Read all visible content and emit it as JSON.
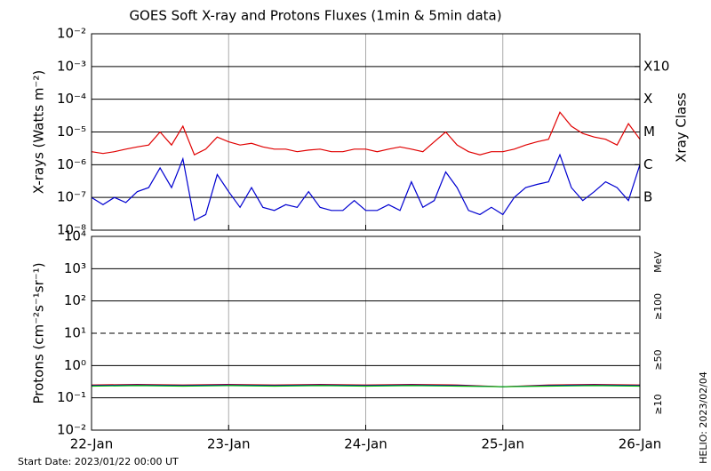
{
  "title": "GOES Soft X-ray and Protons Fluxes   (1min & 5min data)",
  "start_date": "Start Date: 2023/01/22 00:00 UT",
  "helio": "HELIO: 2023/02/04",
  "chart_data": [
    {
      "type": "line",
      "y_label": "X-rays (Watts m⁻²)",
      "y2_label": "Xray Class",
      "log_scale": true,
      "x": [
        0,
        2,
        4,
        6,
        8,
        10,
        12,
        14,
        16,
        18,
        20,
        22,
        24,
        26,
        28,
        30,
        32,
        34,
        36,
        38,
        40,
        42,
        44,
        46,
        48,
        50,
        52,
        54,
        56,
        58,
        60,
        62,
        64,
        66,
        68,
        70,
        72,
        74,
        76,
        78,
        80,
        82,
        84,
        86,
        88,
        90,
        92,
        94,
        96
      ],
      "xlim": [
        0,
        96
      ],
      "xticks": [
        0,
        24,
        48,
        72,
        96
      ],
      "ylim": [
        1e-08,
        0.01
      ],
      "yticks": [
        {
          "value": 0.01,
          "label": "10⁻²"
        },
        {
          "value": 0.001,
          "label": "10⁻³"
        },
        {
          "value": 0.0001,
          "label": "10⁻⁴"
        },
        {
          "value": 1e-05,
          "label": "10⁻⁵"
        },
        {
          "value": 1e-06,
          "label": "10⁻⁶"
        },
        {
          "value": 1e-07,
          "label": "10⁻⁷"
        },
        {
          "value": 1e-08,
          "label": "10⁻⁸"
        }
      ],
      "y2lim": [
        1e-08,
        0.01
      ],
      "y2ticks": [
        {
          "value": 0.001,
          "label": "X10"
        },
        {
          "value": 0.0001,
          "label": "X"
        },
        {
          "value": 1e-05,
          "label": "M"
        },
        {
          "value": 1e-06,
          "label": "C"
        },
        {
          "value": 1e-07,
          "label": "B"
        }
      ],
      "grid": true,
      "series": [
        {
          "color": "#e00000",
          "values": [
            2.5e-06,
            2.2e-06,
            2.5e-06,
            3e-06,
            3.5e-06,
            4e-06,
            1e-05,
            4e-06,
            1.5e-05,
            2e-06,
            3e-06,
            7e-06,
            5e-06,
            4e-06,
            4.5e-06,
            3.5e-06,
            3e-06,
            3e-06,
            2.5e-06,
            2.8e-06,
            3e-06,
            2.5e-06,
            2.5e-06,
            3e-06,
            3e-06,
            2.5e-06,
            3e-06,
            3.5e-06,
            3e-06,
            2.5e-06,
            5e-06,
            1e-05,
            4e-06,
            2.5e-06,
            2e-06,
            2.5e-06,
            2.5e-06,
            3e-06,
            4e-06,
            5e-06,
            6e-06,
            4e-05,
            1.5e-05,
            9e-06,
            7e-06,
            6e-06,
            4e-06,
            1.8e-05,
            6e-06
          ]
        },
        {
          "color": "#0000d0",
          "values": [
            1e-07,
            6e-08,
            1e-07,
            7e-08,
            1.5e-07,
            2e-07,
            8e-07,
            2e-07,
            1.5e-06,
            2e-08,
            3e-08,
            5e-07,
            1.5e-07,
            5e-08,
            2e-07,
            5e-08,
            4e-08,
            6e-08,
            5e-08,
            1.5e-07,
            5e-08,
            4e-08,
            4e-08,
            8e-08,
            4e-08,
            4e-08,
            6e-08,
            4e-08,
            3e-07,
            5e-08,
            8e-08,
            6e-07,
            2e-07,
            4e-08,
            3e-08,
            5e-08,
            3e-08,
            1e-07,
            2e-07,
            2.5e-07,
            3e-07,
            2e-06,
            2e-07,
            8e-08,
            1.5e-07,
            3e-07,
            2e-07,
            8e-08,
            1e-06
          ]
        }
      ]
    },
    {
      "type": "line",
      "y_label": "Protons (cm⁻²s⁻¹sr⁻¹)",
      "log_scale": true,
      "legend_title": "MeV",
      "x": [
        0,
        8,
        16,
        24,
        32,
        40,
        48,
        56,
        64,
        72,
        80,
        88,
        96
      ],
      "xlim": [
        0,
        96
      ],
      "xticks": [
        {
          "value": 0,
          "label": "22-Jan"
        },
        {
          "value": 24,
          "label": "23-Jan"
        },
        {
          "value": 48,
          "label": "24-Jan"
        },
        {
          "value": 72,
          "label": "25-Jan"
        },
        {
          "value": 96,
          "label": "26-Jan"
        }
      ],
      "ylim": [
        0.01,
        10000
      ],
      "yticks": [
        {
          "value": 10000,
          "label": "10⁴"
        },
        {
          "value": 1000,
          "label": "10³"
        },
        {
          "value": 100,
          "label": "10²"
        },
        {
          "value": 10,
          "label": "10¹"
        },
        {
          "value": 1,
          "label": "10⁰"
        },
        {
          "value": 0.1,
          "label": "10⁻¹"
        },
        {
          "value": 0.01,
          "label": "10⁻²"
        }
      ],
      "grid": true,
      "threshold_line": 10,
      "series": [
        {
          "name": "≥10",
          "color": "#e00000",
          "values": [
            0.25,
            0.26,
            0.25,
            0.26,
            0.25,
            0.26,
            0.25,
            0.26,
            0.25,
            0.22,
            0.25,
            0.26,
            0.25
          ]
        },
        {
          "name": "≥50",
          "color": "#0000d0",
          "values": [
            0.24,
            0.25,
            0.24,
            0.25,
            0.24,
            0.25,
            0.24,
            0.25,
            0.24,
            0.22,
            0.24,
            0.25,
            0.24
          ]
        },
        {
          "name": "≥100",
          "color": "#00c000",
          "values": [
            0.23,
            0.24,
            0.23,
            0.24,
            0.23,
            0.24,
            0.23,
            0.24,
            0.23,
            0.22,
            0.23,
            0.24,
            0.23
          ]
        }
      ]
    }
  ]
}
